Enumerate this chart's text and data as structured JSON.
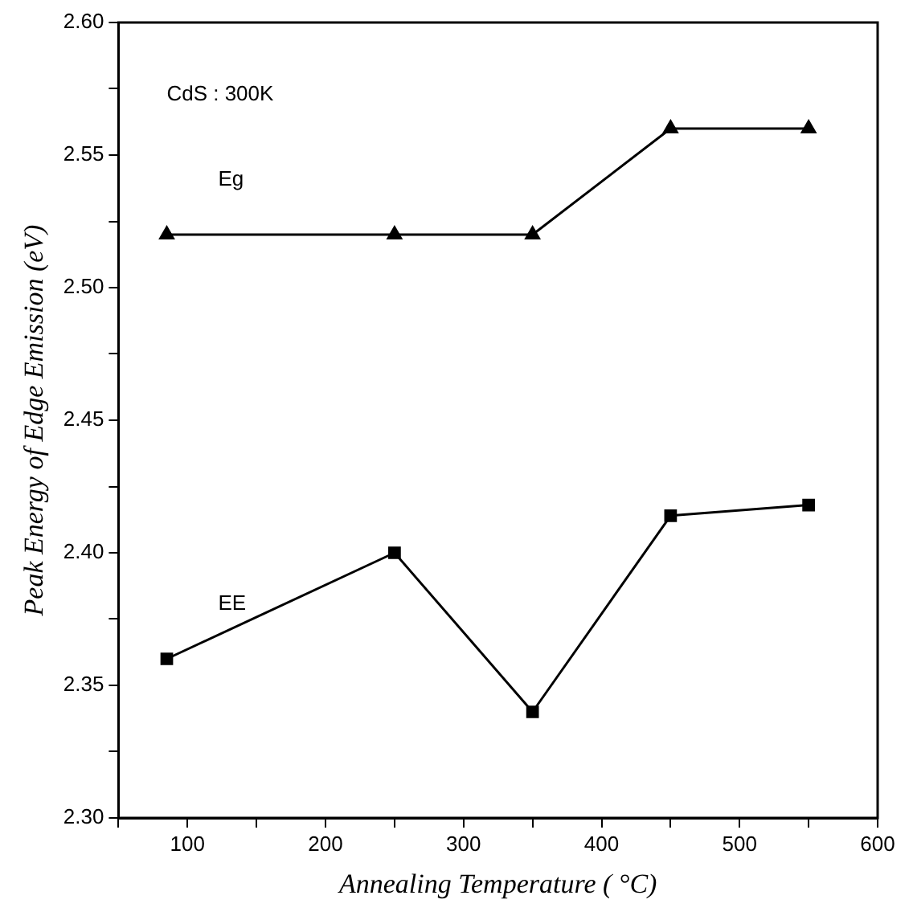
{
  "chart_data": {
    "type": "line",
    "xlabel": "Annealing Temperature ( °C)",
    "ylabel": "Peak Energy of Edge Emission (eV)",
    "x": [
      85,
      250,
      350,
      450,
      550
    ],
    "series": [
      {
        "name": "Eg",
        "color": "#000000",
        "marker": "triangle",
        "values": [
          2.52,
          2.52,
          2.52,
          2.56,
          2.56
        ]
      },
      {
        "name": "EE",
        "color": "#000000",
        "marker": "square",
        "values": [
          2.36,
          2.4,
          2.34,
          2.414,
          2.418
        ]
      }
    ],
    "xlim": [
      50,
      600
    ],
    "xticks": [
      {
        "value": 50,
        "label": null
      },
      100,
      {
        "value": 150,
        "label": null
      },
      200,
      {
        "value": 250,
        "label": null
      },
      300,
      {
        "value": 350,
        "label": null
      },
      400,
      {
        "value": 450,
        "label": null
      },
      500,
      {
        "value": 550,
        "label": null
      },
      600
    ],
    "ylim": [
      2.3,
      2.6
    ],
    "yticks": [
      {
        "value": 2.3,
        "label": "2.30"
      },
      {
        "value": 2.325,
        "label": null
      },
      {
        "value": 2.35,
        "label": "2.35"
      },
      {
        "value": 2.375,
        "label": null
      },
      {
        "value": 2.4,
        "label": "2.40"
      },
      {
        "value": 2.425,
        "label": null
      },
      {
        "value": 2.45,
        "label": "2.45"
      },
      {
        "value": 2.475,
        "label": null
      },
      {
        "value": 2.5,
        "label": "2.50"
      },
      {
        "value": 2.525,
        "label": null
      },
      {
        "value": 2.55,
        "label": "2.55"
      },
      {
        "value": 2.575,
        "label": null
      },
      {
        "value": 2.6,
        "label": "2.60"
      }
    ],
    "annotations": [
      "CdS : 300K"
    ],
    "grid": false,
    "legend": false,
    "line_style": "solid"
  }
}
